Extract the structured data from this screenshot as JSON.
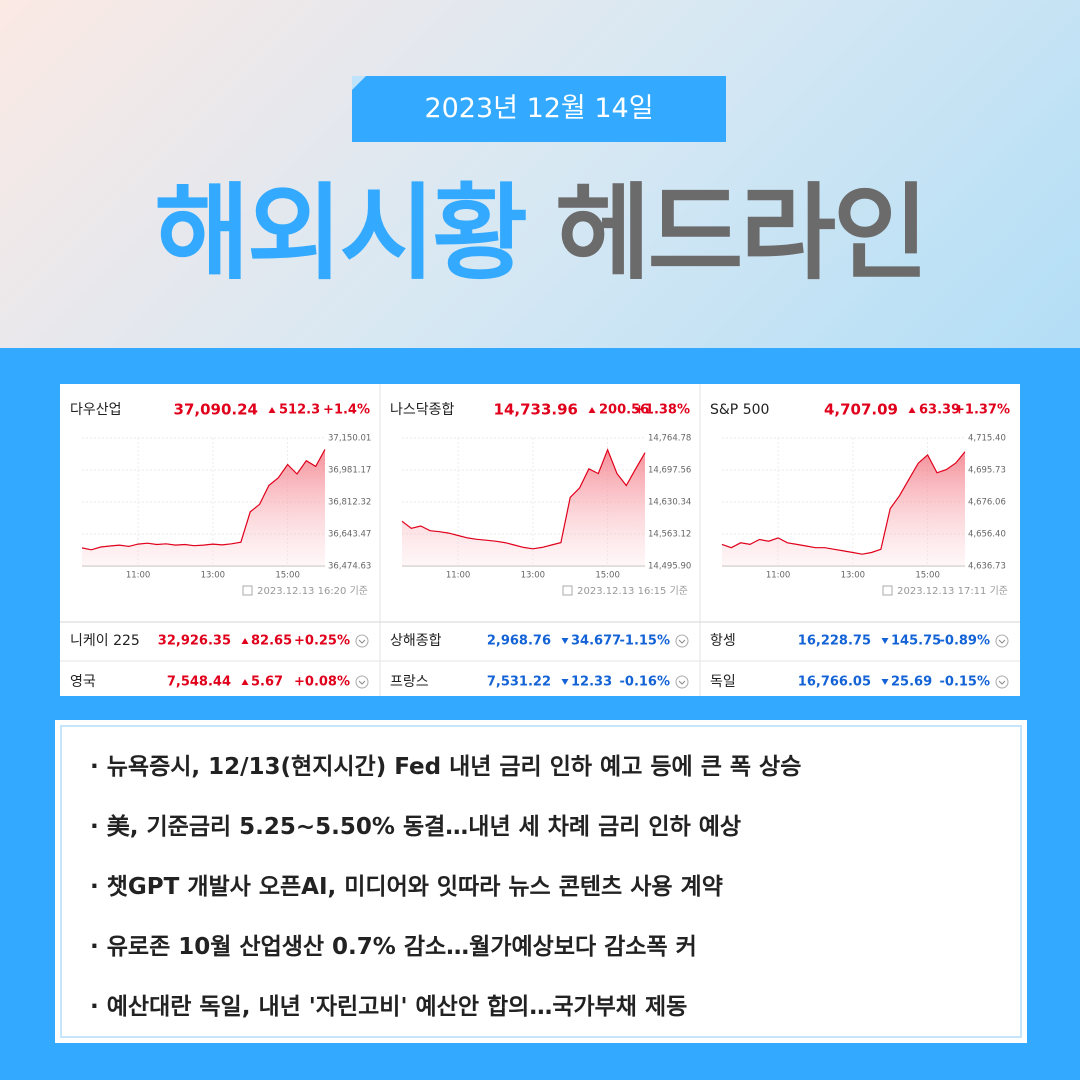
{
  "header": {
    "date": "2023년 12월 14일",
    "title_blue": "해외시황",
    "title_gray": "헤드라인"
  },
  "chart_data": [
    {
      "type": "line",
      "title": "다우산업",
      "price": "37,090.24",
      "change": "512.3",
      "percent": "+1.4%",
      "direction": "up",
      "timestamp": "2023.12.13 16:20 기준",
      "color": "#e0001b",
      "grid": true,
      "xlim": [
        9.5,
        16
      ],
      "xticks": [
        {
          "value": 11,
          "label": "11:00"
        },
        {
          "value": 13,
          "label": "13:00"
        },
        {
          "value": 15,
          "label": "15:00"
        }
      ],
      "ylim": [
        36474.63,
        37150.01
      ],
      "yticks": [
        {
          "value": 37150.01,
          "label": "37,150.01"
        },
        {
          "value": 36981.17,
          "label": "36,981.17"
        },
        {
          "value": 36812.32,
          "label": "36,812.32"
        },
        {
          "value": 36643.47,
          "label": "36,643.47"
        },
        {
          "value": 36474.63,
          "label": "36,474.63"
        }
      ],
      "x": [
        9.5,
        9.75,
        10,
        10.25,
        10.5,
        10.75,
        11,
        11.25,
        11.5,
        11.75,
        12,
        12.25,
        12.5,
        12.75,
        13,
        13.25,
        13.5,
        13.75,
        14,
        14.25,
        14.5,
        14.75,
        15,
        15.25,
        15.5,
        15.75,
        16
      ],
      "values": [
        36570,
        36560,
        36575,
        36580,
        36585,
        36578,
        36590,
        36595,
        36588,
        36592,
        36585,
        36588,
        36582,
        36585,
        36590,
        36586,
        36592,
        36600,
        36760,
        36800,
        36900,
        36940,
        37010,
        36960,
        37030,
        37000,
        37090
      ]
    },
    {
      "type": "line",
      "title": "나스닥종합",
      "price": "14,733.96",
      "change": "200.56",
      "percent": "+1.38%",
      "direction": "up",
      "timestamp": "2023.12.13 16:15 기준",
      "color": "#e0001b",
      "grid": true,
      "xlim": [
        9.5,
        16
      ],
      "xticks": [
        {
          "value": 11,
          "label": "11:00"
        },
        {
          "value": 13,
          "label": "13:00"
        },
        {
          "value": 15,
          "label": "15:00"
        }
      ],
      "ylim": [
        14495.9,
        14764.78
      ],
      "yticks": [
        {
          "value": 14764.78,
          "label": "14,764.78"
        },
        {
          "value": 14697.56,
          "label": "14,697.56"
        },
        {
          "value": 14630.34,
          "label": "14,630.34"
        },
        {
          "value": 14563.12,
          "label": "14,563.12"
        },
        {
          "value": 14495.9,
          "label": "14,495.90"
        }
      ],
      "x": [
        9.5,
        9.75,
        10,
        10.25,
        10.5,
        10.75,
        11,
        11.25,
        11.5,
        11.75,
        12,
        12.25,
        12.5,
        12.75,
        13,
        13.25,
        13.5,
        13.75,
        14,
        14.25,
        14.5,
        14.75,
        15,
        15.25,
        15.5,
        15.75,
        16
      ],
      "values": [
        14590,
        14575,
        14580,
        14570,
        14568,
        14565,
        14560,
        14555,
        14552,
        14550,
        14548,
        14545,
        14540,
        14535,
        14532,
        14535,
        14540,
        14545,
        14640,
        14660,
        14700,
        14690,
        14740,
        14690,
        14665,
        14700,
        14734
      ]
    },
    {
      "type": "line",
      "title": "S&P 500",
      "price": "4,707.09",
      "change": "63.39",
      "percent": "+1.37%",
      "direction": "up",
      "timestamp": "2023.12.13 17:11 기준",
      "color": "#e0001b",
      "grid": true,
      "xlim": [
        9.5,
        16
      ],
      "xticks": [
        {
          "value": 11,
          "label": "11:00"
        },
        {
          "value": 13,
          "label": "13:00"
        },
        {
          "value": 15,
          "label": "15:00"
        }
      ],
      "ylim": [
        4636.73,
        4715.4
      ],
      "yticks": [
        {
          "value": 4715.4,
          "label": "4,715.40"
        },
        {
          "value": 4695.73,
          "label": "4,695.73"
        },
        {
          "value": 4676.06,
          "label": "4,676.06"
        },
        {
          "value": 4656.4,
          "label": "4,656.40"
        },
        {
          "value": 4636.73,
          "label": "4,636.73"
        }
      ],
      "x": [
        9.5,
        9.75,
        10,
        10.25,
        10.5,
        10.75,
        11,
        11.25,
        11.5,
        11.75,
        12,
        12.25,
        12.5,
        12.75,
        13,
        13.25,
        13.5,
        13.75,
        14,
        14.25,
        14.5,
        14.75,
        15,
        15.25,
        15.5,
        15.75,
        16
      ],
      "values": [
        4650,
        4648,
        4651,
        4650,
        4653,
        4652,
        4654,
        4651,
        4650,
        4649,
        4648,
        4648,
        4647,
        4646,
        4645,
        4644,
        4645,
        4647,
        4672,
        4680,
        4690,
        4700,
        4705,
        4694,
        4696,
        4700,
        4707
      ]
    }
  ],
  "indices": [
    {
      "name": "니케이 225",
      "value": "32,926.35",
      "change": "82.65",
      "percent": "+0.25%",
      "direction": "up"
    },
    {
      "name": "상해종합",
      "value": "2,968.76",
      "change": "34.677",
      "percent": "-1.15%",
      "direction": "down"
    },
    {
      "name": "항셍",
      "value": "16,228.75",
      "change": "145.75",
      "percent": "-0.89%",
      "direction": "down"
    },
    {
      "name": "영국",
      "value": "7,548.44",
      "change": "5.67",
      "percent": "+0.08%",
      "direction": "up"
    },
    {
      "name": "프랑스",
      "value": "7,531.22",
      "change": "12.33",
      "percent": "-0.16%",
      "direction": "down"
    },
    {
      "name": "독일",
      "value": "16,766.05",
      "change": "25.69",
      "percent": "-0.15%",
      "direction": "down"
    }
  ],
  "headlines": [
    "뉴욕증시, 12/13(현지시간) Fed 내년 금리 인하 예고 등에 큰 폭 상승",
    "美, 기준금리 5.25~5.50% 동결…내년 세 차례 금리 인하 예상",
    "챗GPT 개발사 오픈AI, 미디어와 잇따라 뉴스 콘텐츠 사용 계약",
    "유로존 10월 산업생산 0.7% 감소…월가예상보다 감소폭 커",
    "예산대란 독일, 내년 '자린고비' 예산안 합의…국가부채 제동"
  ]
}
